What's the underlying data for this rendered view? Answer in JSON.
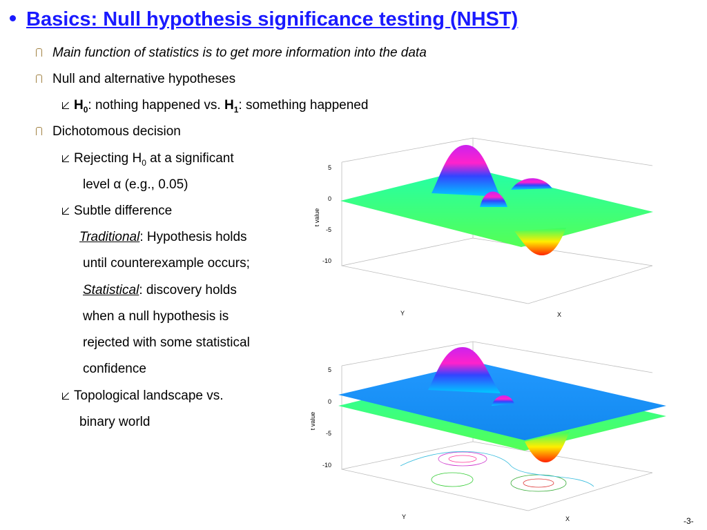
{
  "slide": {
    "title": "Basics: Null hypothesis significance testing (NHST)",
    "lines": [
      [
        "Main function of statistics is to get more information into the data"
      ],
      [
        "Null and alternative hypotheses"
      ],
      [
        "H",
        "0",
        ": nothing happened vs. ",
        "H",
        "1",
        ": something happened"
      ],
      [
        "Dichotomous decision"
      ],
      [
        "Rejecting H",
        "0",
        " at a significant"
      ],
      [
        "level α (e.g., 0.05)"
      ],
      [
        "Subtle difference"
      ],
      [
        "Traditional",
        ": Hypothesis holds"
      ],
      [
        "until counterexample occurs;"
      ],
      [
        "Statistical",
        ": discovery holds"
      ],
      [
        "when a null hypothesis is"
      ],
      [
        "rejected with some statistical"
      ],
      [
        "confidence"
      ],
      [
        "Topological landscape vs."
      ],
      [
        "binary world"
      ]
    ],
    "page_number": "-3-"
  },
  "figures": [
    {
      "ticks": [
        5,
        0,
        -5,
        -10
      ],
      "value_label": "t value",
      "y_label": "Y",
      "x_label": "X"
    },
    {
      "ticks": [
        5,
        0,
        -5,
        -10
      ],
      "value_label": "t value",
      "y_label": "Y",
      "x_label": "X"
    }
  ]
}
